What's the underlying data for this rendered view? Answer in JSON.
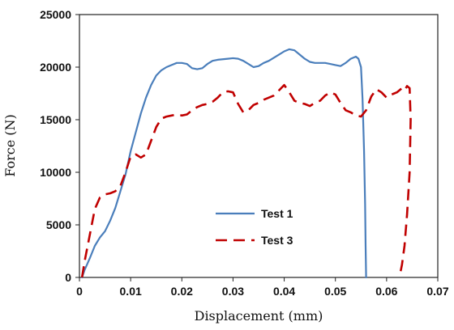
{
  "chart_data": {
    "type": "line",
    "xlabel": "Displacement (mm)",
    "ylabel": "Force (N)",
    "xlim": [
      0,
      0.07
    ],
    "ylim": [
      0,
      25000
    ],
    "x_ticks": [
      0,
      0.01,
      0.02,
      0.03,
      0.04,
      0.05,
      0.06,
      0.07
    ],
    "x_tick_labels": [
      "0",
      "0.01",
      "0.02",
      "0.03",
      "0.04",
      "0.05",
      "0.06",
      "0.07"
    ],
    "y_ticks": [
      0,
      5000,
      10000,
      15000,
      20000,
      25000
    ],
    "y_tick_labels": [
      "0",
      "5000",
      "10000",
      "15000",
      "20000",
      "25000"
    ],
    "grid": false,
    "legend_placement": "center-bottom",
    "series": [
      {
        "name": "Test 1",
        "color": "#4a7ebb",
        "style": "solid",
        "points": [
          [
            0.0005,
            0
          ],
          [
            0.001,
            700
          ],
          [
            0.002,
            1800
          ],
          [
            0.003,
            3000
          ],
          [
            0.004,
            3800
          ],
          [
            0.005,
            4400
          ],
          [
            0.006,
            5400
          ],
          [
            0.007,
            6600
          ],
          [
            0.008,
            8200
          ],
          [
            0.009,
            9800
          ],
          [
            0.01,
            12000
          ],
          [
            0.011,
            13800
          ],
          [
            0.012,
            15600
          ],
          [
            0.013,
            17100
          ],
          [
            0.014,
            18300
          ],
          [
            0.015,
            19200
          ],
          [
            0.016,
            19700
          ],
          [
            0.017,
            20000
          ],
          [
            0.018,
            20200
          ],
          [
            0.019,
            20400
          ],
          [
            0.02,
            20400
          ],
          [
            0.021,
            20300
          ],
          [
            0.022,
            19900
          ],
          [
            0.023,
            19800
          ],
          [
            0.024,
            19900
          ],
          [
            0.025,
            20300
          ],
          [
            0.026,
            20600
          ],
          [
            0.027,
            20700
          ],
          [
            0.028,
            20750
          ],
          [
            0.029,
            20800
          ],
          [
            0.03,
            20850
          ],
          [
            0.031,
            20800
          ],
          [
            0.032,
            20600
          ],
          [
            0.033,
            20300
          ],
          [
            0.034,
            20000
          ],
          [
            0.035,
            20100
          ],
          [
            0.036,
            20400
          ],
          [
            0.037,
            20600
          ],
          [
            0.038,
            20900
          ],
          [
            0.039,
            21200
          ],
          [
            0.04,
            21500
          ],
          [
            0.041,
            21700
          ],
          [
            0.042,
            21600
          ],
          [
            0.043,
            21200
          ],
          [
            0.044,
            20800
          ],
          [
            0.045,
            20500
          ],
          [
            0.046,
            20400
          ],
          [
            0.047,
            20400
          ],
          [
            0.048,
            20400
          ],
          [
            0.049,
            20300
          ],
          [
            0.05,
            20200
          ],
          [
            0.051,
            20100
          ],
          [
            0.052,
            20400
          ],
          [
            0.053,
            20800
          ],
          [
            0.054,
            21000
          ],
          [
            0.0545,
            20800
          ],
          [
            0.055,
            20000
          ],
          [
            0.0553,
            17000
          ],
          [
            0.0556,
            12000
          ],
          [
            0.0558,
            7000
          ],
          [
            0.0559,
            3000
          ],
          [
            0.056,
            0
          ]
        ]
      },
      {
        "name": "Test 3",
        "color": "#c00000",
        "style": "dashed",
        "points": [
          [
            0.0005,
            0
          ],
          [
            0.001,
            1500
          ],
          [
            0.002,
            4000
          ],
          [
            0.003,
            6500
          ],
          [
            0.004,
            7600
          ],
          [
            0.005,
            7900
          ],
          [
            0.006,
            8000
          ],
          [
            0.007,
            8200
          ],
          [
            0.008,
            8700
          ],
          [
            0.009,
            10000
          ],
          [
            0.01,
            11500
          ],
          [
            0.011,
            11700
          ],
          [
            0.012,
            11400
          ],
          [
            0.013,
            11700
          ],
          [
            0.014,
            13000
          ],
          [
            0.015,
            14300
          ],
          [
            0.016,
            15100
          ],
          [
            0.017,
            15300
          ],
          [
            0.018,
            15400
          ],
          [
            0.019,
            15500
          ],
          [
            0.02,
            15400
          ],
          [
            0.021,
            15500
          ],
          [
            0.022,
            15900
          ],
          [
            0.023,
            16200
          ],
          [
            0.024,
            16400
          ],
          [
            0.025,
            16500
          ],
          [
            0.026,
            16700
          ],
          [
            0.027,
            17100
          ],
          [
            0.028,
            17600
          ],
          [
            0.029,
            17700
          ],
          [
            0.03,
            17600
          ],
          [
            0.031,
            16500
          ],
          [
            0.032,
            15700
          ],
          [
            0.033,
            15900
          ],
          [
            0.034,
            16400
          ],
          [
            0.035,
            16600
          ],
          [
            0.036,
            16900
          ],
          [
            0.037,
            17100
          ],
          [
            0.038,
            17300
          ],
          [
            0.039,
            17800
          ],
          [
            0.04,
            18300
          ],
          [
            0.041,
            17600
          ],
          [
            0.042,
            16800
          ],
          [
            0.043,
            16600
          ],
          [
            0.044,
            16500
          ],
          [
            0.045,
            16300
          ],
          [
            0.046,
            16600
          ],
          [
            0.047,
            16800
          ],
          [
            0.048,
            17300
          ],
          [
            0.049,
            17600
          ],
          [
            0.05,
            17400
          ],
          [
            0.051,
            16600
          ],
          [
            0.052,
            15900
          ],
          [
            0.053,
            15700
          ],
          [
            0.054,
            15400
          ],
          [
            0.055,
            15300
          ],
          [
            0.056,
            15900
          ],
          [
            0.057,
            17200
          ],
          [
            0.058,
            17900
          ],
          [
            0.059,
            17600
          ],
          [
            0.06,
            17100
          ],
          [
            0.061,
            17400
          ],
          [
            0.062,
            17600
          ],
          [
            0.063,
            18000
          ],
          [
            0.0635,
            17800
          ],
          [
            0.064,
            18200
          ],
          [
            0.0645,
            18000
          ],
          [
            0.0647,
            15000
          ],
          [
            0.0645,
            10000
          ],
          [
            0.064,
            6000
          ],
          [
            0.0635,
            3000
          ],
          [
            0.063,
            1200
          ],
          [
            0.0625,
            0
          ]
        ]
      }
    ]
  }
}
